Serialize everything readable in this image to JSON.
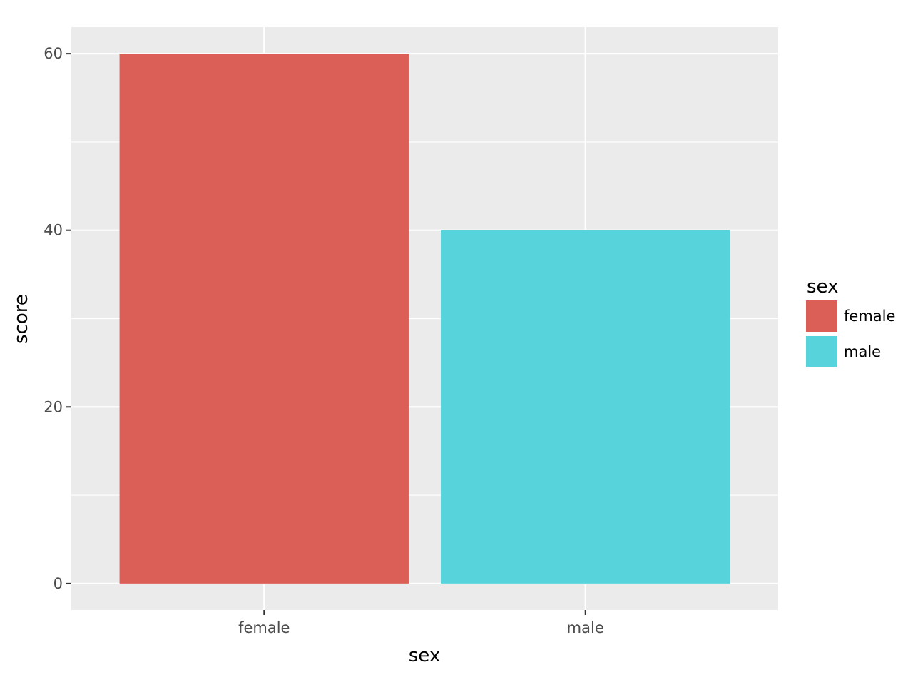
{
  "chart_data": {
    "type": "bar",
    "title": "",
    "xlabel": "sex",
    "ylabel": "score",
    "categories": [
      "female",
      "male"
    ],
    "values": [
      60,
      40
    ],
    "colors": [
      "#db5f57",
      "#57d3db"
    ],
    "ylim": [
      -3,
      63
    ],
    "yticks": [
      0,
      20,
      40,
      60
    ],
    "y_minor_ticks": [
      10,
      30,
      50
    ],
    "grid": true,
    "panel_background": "#ebebeb",
    "gridline_color": "#ffffff",
    "legend": {
      "title": "sex",
      "position": "right",
      "entries": [
        {
          "label": "female",
          "color": "#db5f57"
        },
        {
          "label": "male",
          "color": "#57d3db"
        }
      ]
    }
  }
}
